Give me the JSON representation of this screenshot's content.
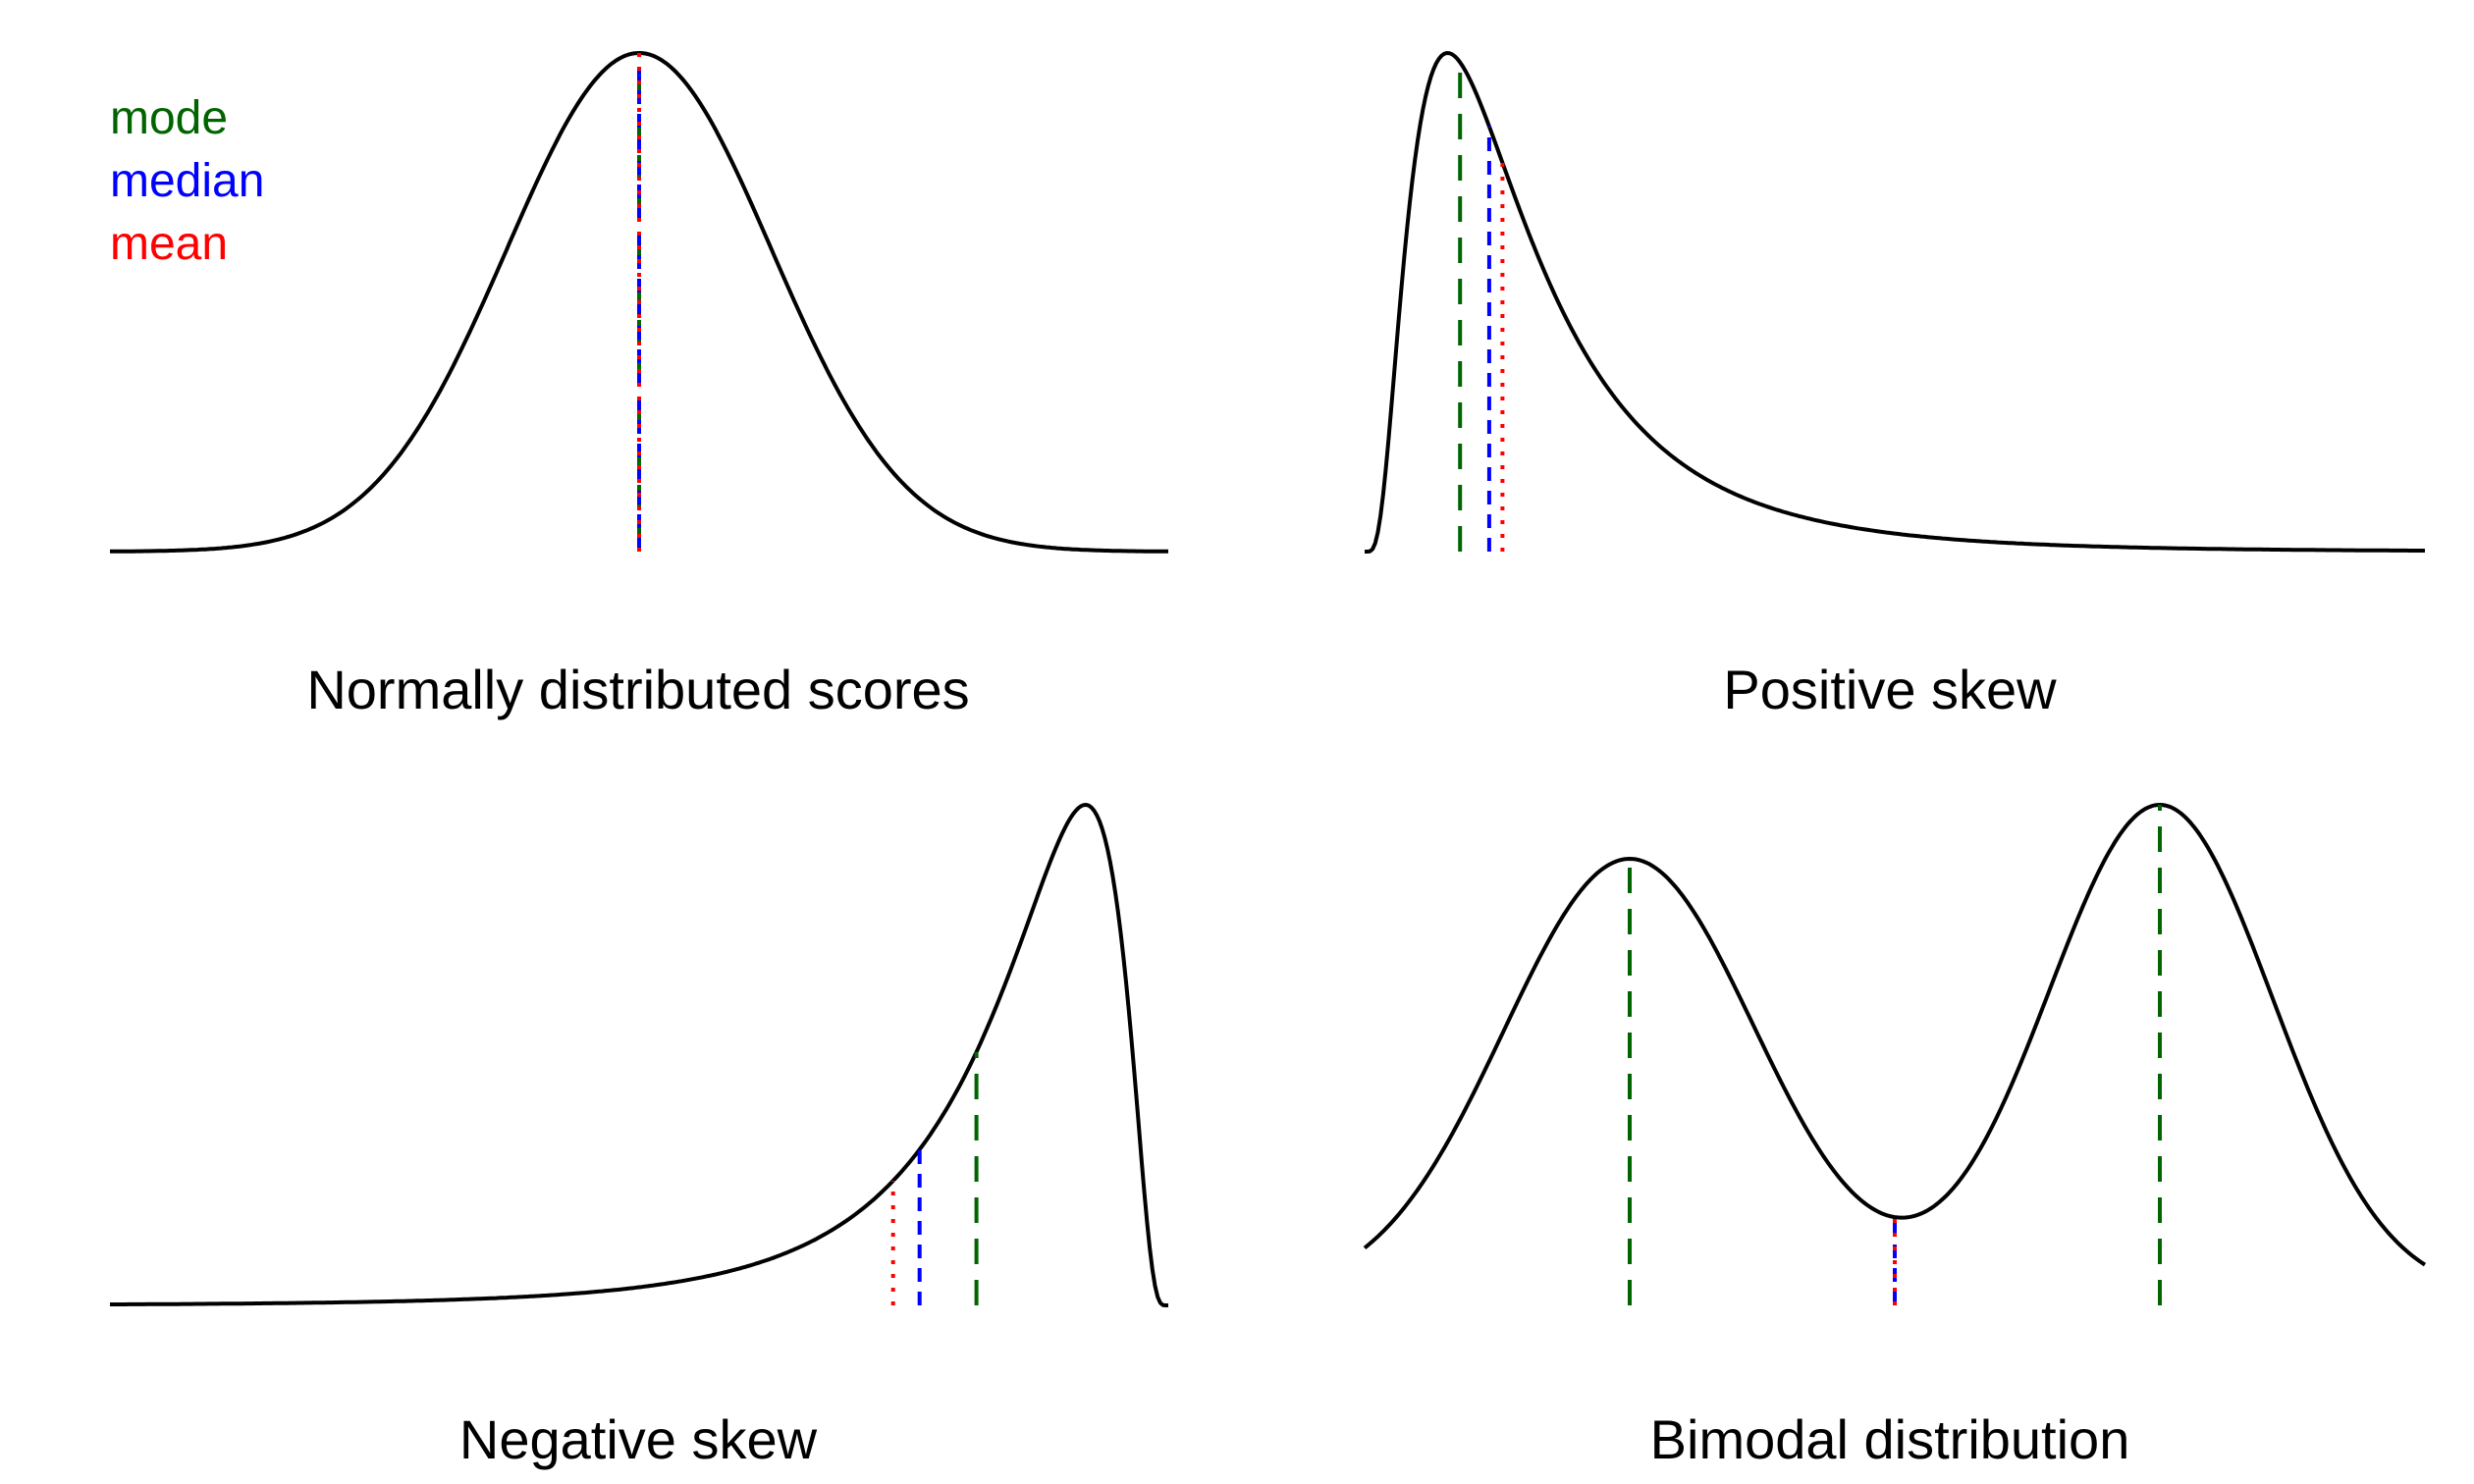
{
  "colors": {
    "mode": "#006400",
    "median": "#0000ff",
    "mean": "#ff0000",
    "curve": "#000000"
  },
  "legend": [
    {
      "key": "mode",
      "label": "mode"
    },
    {
      "key": "median",
      "label": "median"
    },
    {
      "key": "mean",
      "label": "mean"
    }
  ],
  "chart_data": [
    {
      "type": "line",
      "title": "Normally distributed scores",
      "distribution": "normal",
      "xlim": [
        -4,
        4
      ],
      "ylim": [
        0,
        1
      ],
      "markers": [
        {
          "stat": "mode",
          "x": 0
        },
        {
          "stat": "median",
          "x": 0
        },
        {
          "stat": "mean",
          "x": 0
        }
      ],
      "grid": false,
      "legend": "top-left"
    },
    {
      "type": "line",
      "title": "Positive skew",
      "distribution": "right-skewed",
      "xlim": [
        0,
        8
      ],
      "ylim": [
        0,
        1
      ],
      "markers": [
        {
          "stat": "mode",
          "x": 0.72
        },
        {
          "stat": "median",
          "x": 0.94
        },
        {
          "stat": "mean",
          "x": 1.04
        }
      ],
      "grid": false
    },
    {
      "type": "line",
      "title": "Negative skew",
      "distribution": "left-skewed",
      "xlim": [
        -8,
        0
      ],
      "ylim": [
        0,
        1
      ],
      "markers": [
        {
          "stat": "mode",
          "x": -1.45
        },
        {
          "stat": "median",
          "x": -1.88
        },
        {
          "stat": "mean",
          "x": -2.08
        }
      ],
      "grid": false
    },
    {
      "type": "line",
      "title": "Bimodal distribution",
      "distribution": "bimodal",
      "xlim": [
        -4,
        4
      ],
      "ylim": [
        0,
        1
      ],
      "markers": [
        {
          "stat": "mode",
          "x": -2.0
        },
        {
          "stat": "mode",
          "x": 2.0
        },
        {
          "stat": "median",
          "x": 0.0
        },
        {
          "stat": "mean",
          "x": 0.0
        }
      ],
      "grid": false
    }
  ]
}
